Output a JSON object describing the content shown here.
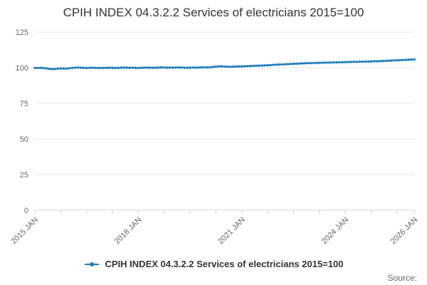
{
  "header": {
    "title": "CPIH INDEX 04.3.2.2 Services of electricians 2015=100"
  },
  "legend": {
    "label": "CPIH INDEX 04.3.2.2 Services of electricians 2015=100"
  },
  "footer": {
    "source_label": "Source:"
  },
  "colors": {
    "series": "#1f7cba",
    "grid": "#e6e6e6",
    "axis_line": "#ccd6eb",
    "tick": "#ccd6eb",
    "axis_label": "#666666",
    "title_text": "#333333",
    "legend_text": "#333333",
    "source_text": "#666666"
  },
  "chart_data": {
    "type": "line",
    "title": "CPIH INDEX 04.3.2.2 Services of electricians 2015=100",
    "series_name": "CPIH INDEX 04.3.2.2 Services of electricians 2015=100",
    "frequency": "monthly",
    "x_start": "2015 JAN",
    "x_end": "2026 JAN",
    "ylim": [
      0,
      125
    ],
    "yticks": [
      0,
      25,
      50,
      75,
      100,
      125
    ],
    "grid": "horizontal",
    "legend_position": "bottom-center",
    "markers": "dots",
    "minor_tick_interval_months": 9,
    "xtick_labels": [
      {
        "label": "2015 JAN",
        "month_index": 0
      },
      {
        "label": "2018 JAN",
        "month_index": 36
      },
      {
        "label": "2021 JAN",
        "month_index": 72
      },
      {
        "label": "2024 JAN",
        "month_index": 108
      },
      {
        "label": "2026 JAN",
        "month_index": 132
      }
    ],
    "values": [
      99.9,
      99.8,
      99.9,
      99.7,
      99.5,
      99.2,
      99.0,
      99.1,
      99.3,
      99.5,
      99.4,
      99.3,
      99.6,
      99.8,
      100.0,
      100.1,
      100.0,
      99.9,
      99.8,
      99.9,
      100.0,
      99.9,
      99.8,
      99.9,
      99.8,
      99.9,
      100.0,
      99.9,
      99.8,
      99.9,
      100.0,
      100.1,
      100.0,
      99.9,
      100.0,
      99.9,
      99.8,
      99.9,
      100.0,
      100.1,
      100.0,
      99.9,
      100.0,
      100.1,
      100.2,
      100.1,
      100.0,
      100.1,
      100.0,
      100.1,
      100.2,
      100.1,
      100.0,
      99.9,
      100.0,
      100.1,
      100.0,
      100.1,
      100.2,
      100.3,
      100.2,
      100.3,
      100.5,
      100.7,
      100.9,
      101.0,
      100.8,
      100.7,
      100.6,
      100.7,
      100.8,
      100.9,
      100.9,
      101.0,
      101.1,
      101.2,
      101.3,
      101.4,
      101.4,
      101.5,
      101.6,
      101.7,
      101.8,
      102.0,
      102.1,
      102.2,
      102.3,
      102.4,
      102.5,
      102.6,
      102.7,
      102.8,
      102.9,
      103.0,
      103.1,
      103.2,
      103.2,
      103.3,
      103.4,
      103.4,
      103.5,
      103.5,
      103.6,
      103.6,
      103.7,
      103.7,
      103.8,
      103.8,
      103.9,
      104.0,
      104.0,
      104.1,
      104.1,
      104.2,
      104.2,
      104.3,
      104.3,
      104.4,
      104.5,
      104.5,
      104.6,
      104.7,
      104.8,
      104.9,
      105.0,
      105.1,
      105.2,
      105.3,
      105.4,
      105.5,
      105.6,
      105.7,
      105.8
    ]
  }
}
